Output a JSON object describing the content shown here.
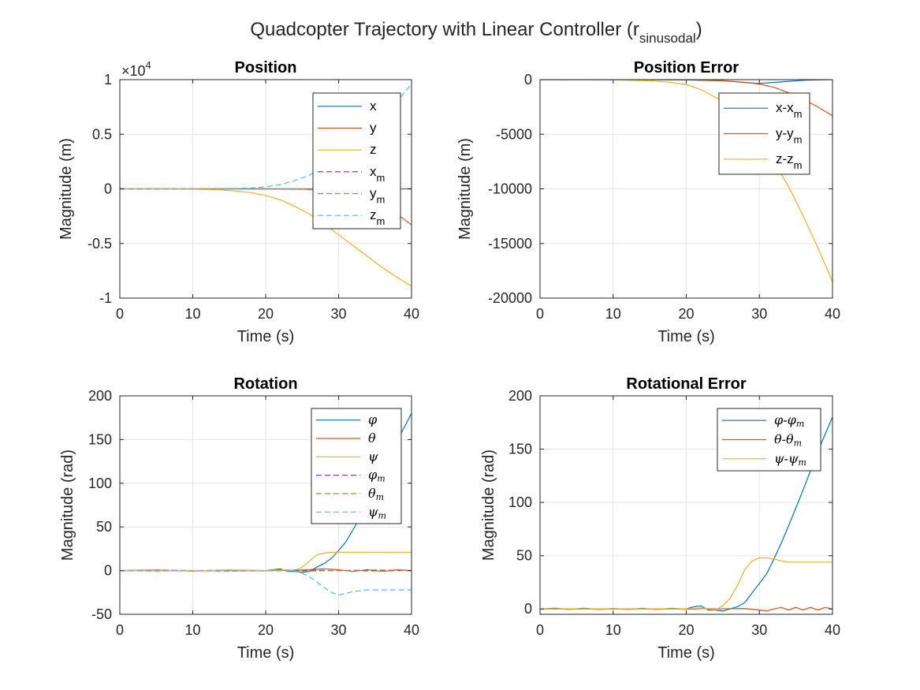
{
  "figure": {
    "title": {
      "main": "Quadcopter Trajectory with Linear Controller (r",
      "sub": "sinusodal",
      "close": ")"
    }
  },
  "colors": {
    "blue": "#0072BD",
    "red": "#D95319",
    "yellow": "#EDB120",
    "purple": "#7E2F8E",
    "green": "#77AC30",
    "cyan": "#4DBEEE",
    "grid": "#e6e6e6",
    "axis": "#262626"
  },
  "chart_data": [
    {
      "type": "line",
      "title": "Position",
      "xlabel": "Time (s)",
      "ylabel": "Magnitude (m)",
      "xlim": [
        0,
        40
      ],
      "ylim": [
        -10000,
        10000
      ],
      "xticks": [
        0,
        10,
        20,
        30,
        40
      ],
      "xtick_labels": [
        "0",
        "10",
        "20",
        "30",
        "40"
      ],
      "yticks": [
        -10000,
        -5000,
        0,
        5000,
        10000
      ],
      "ytick_labels": [
        "-1",
        "-0.5",
        "0",
        "0.5",
        "1"
      ],
      "exponent_label": {
        "base": "×10",
        "power": "4"
      },
      "grid": true,
      "legend_position": "top-right",
      "series": [
        {
          "name": "x",
          "sub": "",
          "label_style": "text",
          "color": "blue",
          "dash": false,
          "x": [
            0,
            10,
            20,
            25,
            28,
            30,
            32,
            35,
            38,
            40
          ],
          "y": [
            0,
            0,
            0,
            -5,
            -10,
            -15,
            -10,
            -5,
            -2,
            0
          ]
        },
        {
          "name": "y",
          "sub": "",
          "label_style": "text",
          "color": "red",
          "dash": false,
          "x": [
            0,
            10,
            20,
            25,
            28,
            30,
            32,
            34,
            36,
            38,
            40
          ],
          "y": [
            0,
            0,
            0,
            -20,
            -100,
            -250,
            -500,
            -900,
            -1500,
            -2300,
            -3300
          ]
        },
        {
          "name": "z",
          "sub": "",
          "label_style": "text",
          "color": "yellow",
          "dash": false,
          "x": [
            0,
            5,
            10,
            12,
            14,
            16,
            18,
            20,
            22,
            24,
            26,
            28,
            30,
            32,
            34,
            36,
            38,
            40
          ],
          "y": [
            0,
            0,
            -20,
            -50,
            -100,
            -200,
            -350,
            -600,
            -1000,
            -1600,
            -2300,
            -3200,
            -4200,
            -5200,
            -6200,
            -7200,
            -8100,
            -8900
          ]
        },
        {
          "name": "x",
          "sub": "m",
          "label_style": "text",
          "color": "purple",
          "dash": true,
          "x": [
            0,
            20,
            40
          ],
          "y": [
            0,
            0,
            0
          ]
        },
        {
          "name": "y",
          "sub": "m",
          "label_style": "text",
          "color": "green",
          "dash": true,
          "x": [
            0,
            20,
            40
          ],
          "y": [
            0,
            0,
            0
          ]
        },
        {
          "name": "z",
          "sub": "m",
          "label_style": "text",
          "color": "cyan",
          "dash": true,
          "x": [
            0,
            10,
            15,
            18,
            20,
            22,
            24,
            26,
            28,
            30,
            32,
            34,
            36,
            38,
            40
          ],
          "y": [
            0,
            0,
            20,
            80,
            180,
            400,
            750,
            1250,
            2000,
            3000,
            4100,
            5300,
            6600,
            8000,
            9600
          ]
        }
      ]
    },
    {
      "type": "line",
      "title": "Position Error",
      "xlabel": "Time (s)",
      "ylabel": "Magnitude (m)",
      "xlim": [
        0,
        40
      ],
      "ylim": [
        -20000,
        0
      ],
      "xticks": [
        0,
        10,
        20,
        30,
        40
      ],
      "xtick_labels": [
        "0",
        "10",
        "20",
        "30",
        "40"
      ],
      "yticks": [
        -20000,
        -15000,
        -10000,
        -5000,
        0
      ],
      "ytick_labels": [
        "-20000",
        "-15000",
        "-10000",
        "-5000",
        "0"
      ],
      "grid": true,
      "legend_position": "top-right",
      "series": [
        {
          "name": "x-x",
          "sub": "m",
          "label_style": "text",
          "color": "blue",
          "dash": false,
          "x": [
            0,
            15,
            20,
            25,
            28,
            30,
            32,
            34,
            36,
            38,
            40
          ],
          "y": [
            0,
            0,
            -20,
            -100,
            -250,
            -350,
            -250,
            -150,
            -60,
            -20,
            0
          ]
        },
        {
          "name": "y-y",
          "sub": "m",
          "label_style": "text",
          "color": "red",
          "dash": false,
          "x": [
            0,
            15,
            20,
            25,
            28,
            30,
            32,
            34,
            36,
            38,
            40
          ],
          "y": [
            0,
            0,
            -20,
            -100,
            -250,
            -400,
            -700,
            -1200,
            -1800,
            -2500,
            -3300
          ]
        },
        {
          "name": "z-z",
          "sub": "m",
          "label_style": "text",
          "color": "yellow",
          "dash": false,
          "x": [
            0,
            10,
            15,
            18,
            20,
            22,
            24,
            26,
            28,
            30,
            32,
            34,
            36,
            38,
            40
          ],
          "y": [
            0,
            -20,
            -100,
            -250,
            -450,
            -900,
            -1600,
            -2600,
            -3900,
            -5500,
            -7500,
            -9800,
            -12500,
            -15400,
            -18500
          ]
        }
      ]
    },
    {
      "type": "line",
      "title": "Rotation",
      "xlabel": "Time (s)",
      "ylabel": "Magnitude (rad)",
      "xlim": [
        0,
        40
      ],
      "ylim": [
        -50,
        200
      ],
      "xticks": [
        0,
        10,
        20,
        30,
        40
      ],
      "xtick_labels": [
        "0",
        "10",
        "20",
        "30",
        "40"
      ],
      "yticks": [
        -50,
        0,
        50,
        100,
        150,
        200
      ],
      "ytick_labels": [
        "-50",
        "0",
        "50",
        "100",
        "150",
        "200"
      ],
      "grid": true,
      "legend_position": "top-right",
      "series": [
        {
          "name": "φ",
          "sub": "",
          "label_style": "math",
          "color": "blue",
          "dash": false,
          "x": [
            0,
            5,
            10,
            15,
            20,
            21,
            22,
            23,
            24,
            25,
            26,
            27,
            28,
            29,
            30,
            31,
            32,
            33,
            34,
            35,
            36,
            37,
            38,
            39,
            40
          ],
          "y": [
            0,
            0,
            0,
            0,
            0,
            1,
            2,
            -1,
            -1,
            -2,
            -1,
            4,
            8,
            14,
            23,
            33,
            47,
            62,
            78,
            95,
            112,
            130,
            148,
            164,
            180
          ]
        },
        {
          "name": "θ",
          "sub": "",
          "label_style": "math",
          "color": "red",
          "dash": false,
          "x": [
            0,
            5,
            10,
            15,
            20,
            25,
            28,
            30,
            32,
            34,
            36,
            38,
            40
          ],
          "y": [
            0,
            0.5,
            -0.5,
            0.5,
            0,
            0.5,
            2,
            1,
            -1,
            1,
            -1,
            1,
            0
          ]
        },
        {
          "name": "ψ",
          "sub": "",
          "label_style": "math",
          "color": "yellow",
          "dash": false,
          "x": [
            0,
            5,
            10,
            15,
            20,
            22,
            24,
            25,
            26,
            27,
            28,
            29,
            30,
            32,
            35,
            40
          ],
          "y": [
            0,
            0,
            0,
            0,
            0,
            1,
            0,
            4,
            11,
            18,
            20,
            21,
            21,
            21,
            21,
            21
          ]
        },
        {
          "name": "φ",
          "sub": "m",
          "label_style": "math",
          "color": "purple",
          "dash": true,
          "x": [
            0,
            5,
            10,
            15,
            20,
            25,
            30,
            35,
            40
          ],
          "y": [
            0,
            0.5,
            0,
            -0.5,
            0,
            0.5,
            0,
            0.5,
            0
          ]
        },
        {
          "name": "θ",
          "sub": "m",
          "label_style": "math",
          "color": "green",
          "dash": true,
          "x": [
            0,
            5,
            10,
            15,
            20,
            25,
            30,
            35,
            40
          ],
          "y": [
            0,
            -0.5,
            0,
            0.5,
            0,
            -0.5,
            0,
            -0.5,
            0
          ]
        },
        {
          "name": "ψ",
          "sub": "m",
          "label_style": "math",
          "color": "cyan",
          "dash": true,
          "x": [
            0,
            5,
            10,
            15,
            20,
            24,
            25,
            26,
            27,
            28,
            29,
            30,
            31,
            32,
            34,
            36,
            38,
            40
          ],
          "y": [
            0,
            0,
            0,
            0,
            0,
            0,
            -3,
            -7,
            -13,
            -19,
            -25,
            -28,
            -26,
            -24,
            -22,
            -22,
            -22,
            -22
          ]
        }
      ]
    },
    {
      "type": "line",
      "title": "Rotational Error",
      "xlabel": "Time (s)",
      "ylabel": "Magnitude (rad)",
      "xlim": [
        0,
        40
      ],
      "ylim": [
        -5,
        200
      ],
      "xticks": [
        0,
        10,
        20,
        30,
        40
      ],
      "xtick_labels": [
        "0",
        "10",
        "20",
        "30",
        "40"
      ],
      "yticks": [
        0,
        50,
        100,
        150,
        200
      ],
      "ytick_labels": [
        "0",
        "50",
        "100",
        "150",
        "200"
      ],
      "grid": true,
      "legend_position": "top-right",
      "series": [
        {
          "name": "φ-φ",
          "sub": "m",
          "label_style": "math",
          "color": "blue",
          "dash": false,
          "x": [
            0,
            5,
            10,
            15,
            20,
            21,
            22,
            23,
            24,
            25,
            26,
            27,
            28,
            29,
            30,
            31,
            32,
            33,
            34,
            35,
            36,
            37,
            38,
            39,
            40
          ],
          "y": [
            0,
            0,
            0,
            0,
            0,
            2,
            3,
            -1,
            -1,
            -2,
            0,
            2,
            6,
            15,
            24,
            33,
            47,
            62,
            78,
            95,
            112,
            130,
            148,
            164,
            180
          ]
        },
        {
          "name": "θ-θ",
          "sub": "m",
          "label_style": "math",
          "color": "red",
          "dash": false,
          "x": [
            0,
            2,
            4,
            6,
            8,
            10,
            12,
            14,
            16,
            18,
            20,
            22,
            24,
            26,
            28,
            30,
            31,
            32,
            33,
            34,
            35,
            36,
            37,
            38,
            39,
            40
          ],
          "y": [
            0,
            0.8,
            -0.4,
            0.8,
            -0.4,
            0.5,
            -0.4,
            0.6,
            -0.4,
            0.6,
            -0.3,
            0.5,
            0,
            0.3,
            0.5,
            -1,
            -2,
            0,
            1.5,
            -1,
            1.5,
            -1,
            1.5,
            -1,
            1.5,
            0
          ]
        },
        {
          "name": "ψ-ψ",
          "sub": "m",
          "label_style": "math",
          "color": "yellow",
          "dash": false,
          "x": [
            0,
            5,
            10,
            15,
            20,
            22,
            24,
            25,
            26,
            27,
            28,
            29,
            30,
            31,
            32,
            33,
            34,
            36,
            38,
            40
          ],
          "y": [
            0,
            0,
            0,
            0,
            0,
            1,
            -1,
            3,
            10,
            22,
            37,
            45,
            48,
            48,
            47,
            45,
            44,
            44,
            44,
            44
          ]
        }
      ]
    }
  ]
}
